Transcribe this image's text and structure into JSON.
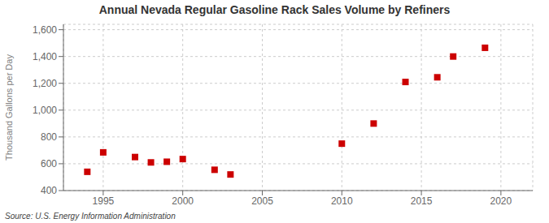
{
  "chart_data": {
    "type": "scatter",
    "title": "Annual Nevada Regular Gasoline Rack Sales Volume by Refiners",
    "ylabel": "Thousand Gallons per Day",
    "annotations": [
      "Source: U.S. Energy Information Administration"
    ],
    "x": [
      1994,
      1995,
      1997,
      1998,
      1999,
      2000,
      2002,
      2003,
      2010,
      2012,
      2014,
      2016,
      2017,
      2019
    ],
    "values": [
      540,
      685,
      650,
      610,
      615,
      635,
      555,
      520,
      750,
      900,
      1210,
      1245,
      1400,
      1465
    ],
    "color": "#cc0000",
    "marker": "square",
    "xlim": [
      1992.5,
      2022
    ],
    "ylim": [
      400,
      1640
    ],
    "xticks": [
      1995,
      2000,
      2005,
      2010,
      2015,
      2020
    ],
    "yticks": [
      400,
      600,
      800,
      {
        "value": 1000,
        "label": "1,000"
      },
      {
        "value": 1200,
        "label": "1,200"
      },
      {
        "value": 1400,
        "label": "1,400"
      },
      {
        "value": 1600,
        "label": "1,600"
      }
    ],
    "grid": true
  }
}
